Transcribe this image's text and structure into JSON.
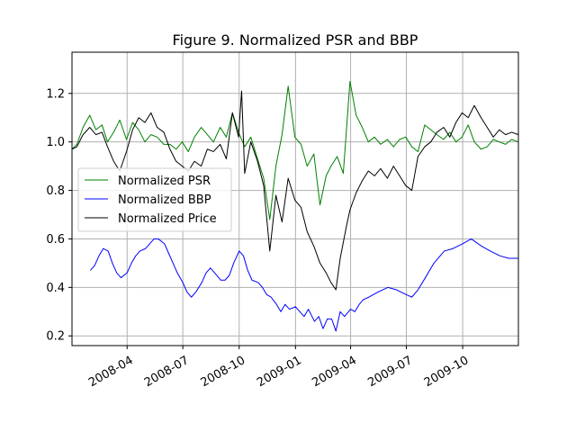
{
  "chart_data": {
    "type": "line",
    "title": "Figure 9. Normalized PSR and BBP",
    "xlabel": "",
    "ylabel": "",
    "x_range": [
      "2008-01-02",
      "2009-12-31"
    ],
    "ylim": [
      0.16,
      1.37
    ],
    "grid": true,
    "legend_position": "center-left",
    "x_ticks": [
      {
        "date": "2008-04-01",
        "label": "2008-04"
      },
      {
        "date": "2008-07-01",
        "label": "2008-07"
      },
      {
        "date": "2008-10-01",
        "label": "2008-10"
      },
      {
        "date": "2009-01-01",
        "label": "2009-01"
      },
      {
        "date": "2009-04-01",
        "label": "2009-04"
      },
      {
        "date": "2009-07-01",
        "label": "2009-07"
      },
      {
        "date": "2009-10-01",
        "label": "2009-10"
      }
    ],
    "y_ticks": [
      {
        "value": 0.2,
        "label": "0.2"
      },
      {
        "value": 0.4,
        "label": "0.4"
      },
      {
        "value": 0.6,
        "label": "0.6"
      },
      {
        "value": 0.8,
        "label": "0.8"
      },
      {
        "value": 1.0,
        "label": "1.0"
      },
      {
        "value": 1.2,
        "label": "1.2"
      }
    ],
    "series": [
      {
        "name": "Normalized PSR",
        "color": "#008000",
        "points": [
          [
            "2008-01-02",
            0.97
          ],
          [
            "2008-01-10",
            0.99
          ],
          [
            "2008-01-20",
            1.06
          ],
          [
            "2008-01-31",
            1.11
          ],
          [
            "2008-02-10",
            1.05
          ],
          [
            "2008-02-20",
            1.07
          ],
          [
            "2008-02-29",
            1.0
          ],
          [
            "2008-03-10",
            1.04
          ],
          [
            "2008-03-20",
            1.09
          ],
          [
            "2008-03-31",
            1.01
          ],
          [
            "2008-04-10",
            1.08
          ],
          [
            "2008-04-20",
            1.05
          ],
          [
            "2008-04-30",
            1.0
          ],
          [
            "2008-05-10",
            1.03
          ],
          [
            "2008-05-20",
            1.02
          ],
          [
            "2008-05-31",
            0.99
          ],
          [
            "2008-06-10",
            0.99
          ],
          [
            "2008-06-20",
            0.97
          ],
          [
            "2008-06-30",
            1.0
          ],
          [
            "2008-07-10",
            0.96
          ],
          [
            "2008-07-20",
            1.02
          ],
          [
            "2008-07-31",
            1.06
          ],
          [
            "2008-08-10",
            1.03
          ],
          [
            "2008-08-20",
            1.0
          ],
          [
            "2008-08-31",
            1.06
          ],
          [
            "2008-09-10",
            1.02
          ],
          [
            "2008-09-20",
            1.12
          ],
          [
            "2008-09-30",
            1.04
          ],
          [
            "2008-10-10",
            0.98
          ],
          [
            "2008-10-20",
            1.02
          ],
          [
            "2008-10-31",
            0.93
          ],
          [
            "2008-11-10",
            0.85
          ],
          [
            "2008-11-20",
            0.68
          ],
          [
            "2008-11-30",
            0.9
          ],
          [
            "2008-12-10",
            1.03
          ],
          [
            "2008-12-20",
            1.23
          ],
          [
            "2008-12-31",
            1.02
          ],
          [
            "2009-01-10",
            0.99
          ],
          [
            "2009-01-20",
            0.9
          ],
          [
            "2009-01-31",
            0.95
          ],
          [
            "2009-02-10",
            0.74
          ],
          [
            "2009-02-20",
            0.86
          ],
          [
            "2009-02-28",
            0.9
          ],
          [
            "2009-03-10",
            0.94
          ],
          [
            "2009-03-20",
            0.87
          ],
          [
            "2009-03-31",
            1.25
          ],
          [
            "2009-04-10",
            1.11
          ],
          [
            "2009-04-20",
            1.06
          ],
          [
            "2009-04-30",
            1.0
          ],
          [
            "2009-05-10",
            1.02
          ],
          [
            "2009-05-20",
            0.99
          ],
          [
            "2009-05-31",
            1.01
          ],
          [
            "2009-06-10",
            0.98
          ],
          [
            "2009-06-20",
            1.01
          ],
          [
            "2009-06-30",
            1.02
          ],
          [
            "2009-07-10",
            0.98
          ],
          [
            "2009-07-20",
            0.96
          ],
          [
            "2009-07-31",
            1.07
          ],
          [
            "2009-08-10",
            1.05
          ],
          [
            "2009-08-20",
            1.03
          ],
          [
            "2009-08-31",
            1.01
          ],
          [
            "2009-09-10",
            1.04
          ],
          [
            "2009-09-20",
            1.0
          ],
          [
            "2009-09-30",
            1.02
          ],
          [
            "2009-10-10",
            1.07
          ],
          [
            "2009-10-20",
            1.0
          ],
          [
            "2009-10-31",
            0.97
          ],
          [
            "2009-11-10",
            0.98
          ],
          [
            "2009-11-20",
            1.01
          ],
          [
            "2009-11-30",
            1.0
          ],
          [
            "2009-12-10",
            0.99
          ],
          [
            "2009-12-20",
            1.01
          ],
          [
            "2009-12-31",
            1.0
          ]
        ]
      },
      {
        "name": "Normalized BBP",
        "color": "#0000ff",
        "points": [
          [
            "2008-02-01",
            0.47
          ],
          [
            "2008-02-08",
            0.49
          ],
          [
            "2008-02-15",
            0.53
          ],
          [
            "2008-02-22",
            0.56
          ],
          [
            "2008-03-01",
            0.55
          ],
          [
            "2008-03-08",
            0.5
          ],
          [
            "2008-03-15",
            0.46
          ],
          [
            "2008-03-22",
            0.44
          ],
          [
            "2008-04-01",
            0.46
          ],
          [
            "2008-04-08",
            0.5
          ],
          [
            "2008-04-15",
            0.53
          ],
          [
            "2008-04-22",
            0.55
          ],
          [
            "2008-05-01",
            0.56
          ],
          [
            "2008-05-08",
            0.58
          ],
          [
            "2008-05-15",
            0.6
          ],
          [
            "2008-05-22",
            0.6
          ],
          [
            "2008-06-01",
            0.58
          ],
          [
            "2008-06-08",
            0.54
          ],
          [
            "2008-06-15",
            0.5
          ],
          [
            "2008-06-22",
            0.46
          ],
          [
            "2008-07-01",
            0.42
          ],
          [
            "2008-07-08",
            0.38
          ],
          [
            "2008-07-15",
            0.36
          ],
          [
            "2008-07-22",
            0.38
          ],
          [
            "2008-08-01",
            0.42
          ],
          [
            "2008-08-08",
            0.46
          ],
          [
            "2008-08-15",
            0.48
          ],
          [
            "2008-08-22",
            0.46
          ],
          [
            "2008-09-01",
            0.43
          ],
          [
            "2008-09-08",
            0.43
          ],
          [
            "2008-09-15",
            0.45
          ],
          [
            "2008-09-22",
            0.5
          ],
          [
            "2008-10-01",
            0.55
          ],
          [
            "2008-10-08",
            0.53
          ],
          [
            "2008-10-15",
            0.47
          ],
          [
            "2008-10-22",
            0.43
          ],
          [
            "2008-11-01",
            0.42
          ],
          [
            "2008-11-08",
            0.4
          ],
          [
            "2008-11-15",
            0.37
          ],
          [
            "2008-11-22",
            0.36
          ],
          [
            "2008-12-01",
            0.33
          ],
          [
            "2008-12-08",
            0.3
          ],
          [
            "2008-12-15",
            0.33
          ],
          [
            "2008-12-22",
            0.31
          ],
          [
            "2009-01-01",
            0.32
          ],
          [
            "2009-01-08",
            0.3
          ],
          [
            "2009-01-15",
            0.28
          ],
          [
            "2009-01-22",
            0.31
          ],
          [
            "2009-02-01",
            0.26
          ],
          [
            "2009-02-08",
            0.28
          ],
          [
            "2009-02-15",
            0.23
          ],
          [
            "2009-02-22",
            0.27
          ],
          [
            "2009-03-01",
            0.27
          ],
          [
            "2009-03-08",
            0.22
          ],
          [
            "2009-03-15",
            0.3
          ],
          [
            "2009-03-22",
            0.28
          ],
          [
            "2009-04-01",
            0.31
          ],
          [
            "2009-04-08",
            0.3
          ],
          [
            "2009-04-15",
            0.33
          ],
          [
            "2009-04-22",
            0.35
          ],
          [
            "2009-05-01",
            0.36
          ],
          [
            "2009-05-15",
            0.38
          ],
          [
            "2009-06-01",
            0.4
          ],
          [
            "2009-06-15",
            0.39
          ],
          [
            "2009-07-01",
            0.37
          ],
          [
            "2009-07-10",
            0.36
          ],
          [
            "2009-07-20",
            0.39
          ],
          [
            "2009-08-01",
            0.44
          ],
          [
            "2009-08-15",
            0.5
          ],
          [
            "2009-09-01",
            0.55
          ],
          [
            "2009-09-15",
            0.56
          ],
          [
            "2009-10-01",
            0.58
          ],
          [
            "2009-10-15",
            0.6
          ],
          [
            "2009-11-01",
            0.57
          ],
          [
            "2009-11-15",
            0.55
          ],
          [
            "2009-12-01",
            0.53
          ],
          [
            "2009-12-15",
            0.52
          ],
          [
            "2009-12-31",
            0.52
          ]
        ]
      },
      {
        "name": "Normalized Price",
        "color": "#000000",
        "points": [
          [
            "2008-01-02",
            0.97
          ],
          [
            "2008-01-10",
            0.98
          ],
          [
            "2008-01-20",
            1.03
          ],
          [
            "2008-01-31",
            1.06
          ],
          [
            "2008-02-10",
            1.03
          ],
          [
            "2008-02-20",
            1.04
          ],
          [
            "2008-02-29",
            0.98
          ],
          [
            "2008-03-10",
            0.92
          ],
          [
            "2008-03-20",
            0.88
          ],
          [
            "2008-03-31",
            0.96
          ],
          [
            "2008-04-10",
            1.05
          ],
          [
            "2008-04-20",
            1.1
          ],
          [
            "2008-04-30",
            1.08
          ],
          [
            "2008-05-10",
            1.12
          ],
          [
            "2008-05-20",
            1.06
          ],
          [
            "2008-05-31",
            1.04
          ],
          [
            "2008-06-10",
            0.97
          ],
          [
            "2008-06-20",
            0.92
          ],
          [
            "2008-06-30",
            0.9
          ],
          [
            "2008-07-10",
            0.88
          ],
          [
            "2008-07-20",
            0.92
          ],
          [
            "2008-07-31",
            0.9
          ],
          [
            "2008-08-10",
            0.97
          ],
          [
            "2008-08-20",
            0.96
          ],
          [
            "2008-08-31",
            0.99
          ],
          [
            "2008-09-10",
            0.93
          ],
          [
            "2008-09-20",
            1.12
          ],
          [
            "2008-09-30",
            1.02
          ],
          [
            "2008-10-05",
            1.21
          ],
          [
            "2008-10-10",
            0.87
          ],
          [
            "2008-10-20",
            1.0
          ],
          [
            "2008-10-31",
            0.92
          ],
          [
            "2008-11-10",
            0.82
          ],
          [
            "2008-11-20",
            0.55
          ],
          [
            "2008-11-30",
            0.78
          ],
          [
            "2008-12-10",
            0.67
          ],
          [
            "2008-12-20",
            0.85
          ],
          [
            "2008-12-31",
            0.76
          ],
          [
            "2009-01-10",
            0.73
          ],
          [
            "2009-01-20",
            0.63
          ],
          [
            "2009-01-31",
            0.57
          ],
          [
            "2009-02-10",
            0.5
          ],
          [
            "2009-02-20",
            0.46
          ],
          [
            "2009-02-28",
            0.42
          ],
          [
            "2009-03-08",
            0.39
          ],
          [
            "2009-03-15",
            0.52
          ],
          [
            "2009-03-25",
            0.65
          ],
          [
            "2009-03-31",
            0.72
          ],
          [
            "2009-04-10",
            0.79
          ],
          [
            "2009-04-20",
            0.84
          ],
          [
            "2009-04-30",
            0.88
          ],
          [
            "2009-05-10",
            0.86
          ],
          [
            "2009-05-20",
            0.89
          ],
          [
            "2009-05-31",
            0.85
          ],
          [
            "2009-06-10",
            0.9
          ],
          [
            "2009-06-20",
            0.86
          ],
          [
            "2009-06-30",
            0.82
          ],
          [
            "2009-07-10",
            0.8
          ],
          [
            "2009-07-20",
            0.94
          ],
          [
            "2009-07-31",
            0.98
          ],
          [
            "2009-08-10",
            1.0
          ],
          [
            "2009-08-20",
            1.04
          ],
          [
            "2009-08-31",
            1.06
          ],
          [
            "2009-09-10",
            1.02
          ],
          [
            "2009-09-20",
            1.08
          ],
          [
            "2009-09-30",
            1.12
          ],
          [
            "2009-10-10",
            1.1
          ],
          [
            "2009-10-20",
            1.15
          ],
          [
            "2009-10-31",
            1.1
          ],
          [
            "2009-11-10",
            1.06
          ],
          [
            "2009-11-20",
            1.02
          ],
          [
            "2009-11-30",
            1.05
          ],
          [
            "2009-12-10",
            1.03
          ],
          [
            "2009-12-20",
            1.04
          ],
          [
            "2009-12-31",
            1.03
          ]
        ]
      }
    ]
  }
}
